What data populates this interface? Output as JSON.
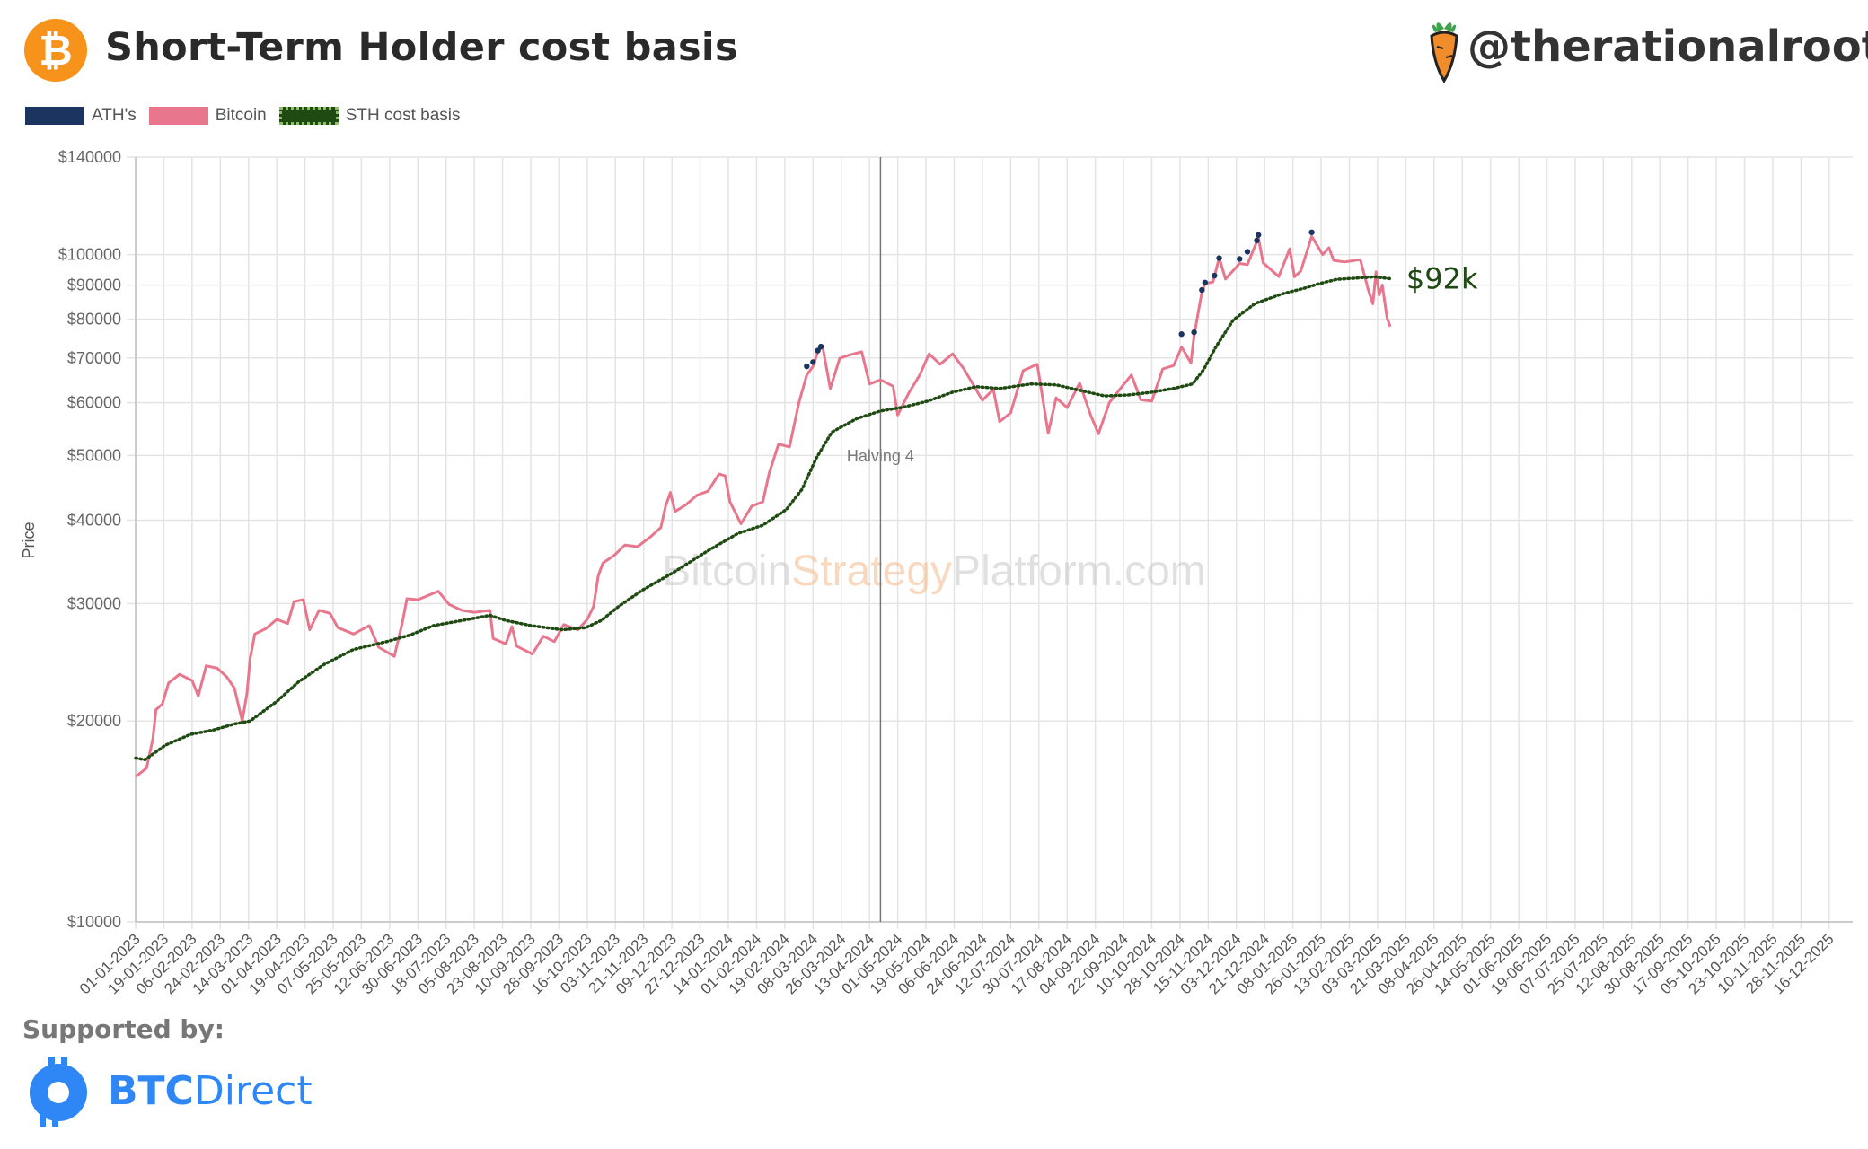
{
  "header": {
    "title": "Short-Term Holder cost basis",
    "handle": "@therationalroot",
    "bitcoin_logo_glyph": "₿",
    "bitcoin_logo_color": "#f7931a",
    "carrot_icon": "carrot-icon"
  },
  "legend": [
    {
      "label": "ATH's",
      "color": "#1b3560",
      "style": "solid"
    },
    {
      "label": "Bitcoin",
      "color": "#e8768c",
      "style": "solid"
    },
    {
      "label": "STH cost basis",
      "color": "#1f4a12",
      "style": "dotted"
    }
  ],
  "footer": {
    "supported_by": "Supported by:",
    "sponsor_bold": "BTC",
    "sponsor_rest": "Direct",
    "sponsor_color": "#2f87f6"
  },
  "chart_data": {
    "type": "line",
    "ylabel": "Price",
    "y_scale": "log",
    "ylim": [
      10000,
      140000
    ],
    "y_ticks": [
      {
        "value": 10000,
        "label": "$10000"
      },
      {
        "value": 20000,
        "label": "$20000"
      },
      {
        "value": 30000,
        "label": "$30000"
      },
      {
        "value": 40000,
        "label": "$40000"
      },
      {
        "value": 50000,
        "label": "$50000"
      },
      {
        "value": 60000,
        "label": "$60000"
      },
      {
        "value": 70000,
        "label": "$70000"
      },
      {
        "value": 80000,
        "label": "$80000"
      },
      {
        "value": 90000,
        "label": "$90000"
      },
      {
        "value": 100000,
        "label": "$100000"
      },
      {
        "value": 140000,
        "label": "$140000"
      }
    ],
    "x_range": [
      "2023-01-01",
      "2025-12-31"
    ],
    "x_ticks": [
      "01-01-2023",
      "19-01-2023",
      "06-02-2023",
      "24-02-2023",
      "14-03-2023",
      "01-04-2023",
      "19-04-2023",
      "07-05-2023",
      "25-05-2023",
      "12-06-2023",
      "30-06-2023",
      "18-07-2023",
      "05-08-2023",
      "23-08-2023",
      "10-09-2023",
      "28-09-2023",
      "16-10-2023",
      "03-11-2023",
      "21-11-2023",
      "09-12-2023",
      "27-12-2023",
      "14-01-2024",
      "01-02-2024",
      "19-02-2024",
      "08-03-2024",
      "26-03-2024",
      "13-04-2024",
      "01-05-2024",
      "19-05-2024",
      "06-06-2024",
      "24-06-2024",
      "12-07-2024",
      "30-07-2024",
      "17-08-2024",
      "04-09-2024",
      "22-09-2024",
      "10-10-2024",
      "28-10-2024",
      "15-11-2024",
      "03-12-2024",
      "21-12-2024",
      "08-01-2025",
      "26-01-2025",
      "13-02-2025",
      "03-03-2025",
      "21-03-2025",
      "08-04-2025",
      "26-04-2025",
      "14-05-2025",
      "01-06-2025",
      "19-06-2025",
      "07-07-2025",
      "25-07-2025",
      "12-08-2025",
      "30-08-2025",
      "17-09-2025",
      "05-10-2025",
      "23-10-2025",
      "10-11-2025",
      "28-11-2025",
      "16-12-2025"
    ],
    "grid": true,
    "legend_position": "top-left",
    "watermark": {
      "part1": "Bitcoin",
      "part2": "Strategy",
      "part3": "Platform.com"
    },
    "annotations": [
      {
        "type": "vline",
        "date": "2024-04-20",
        "label": "Halving 4"
      },
      {
        "type": "label",
        "text": "$92k",
        "color": "#1f4a12"
      }
    ],
    "series": [
      {
        "name": "Bitcoin",
        "color": "#e8768c",
        "points": [
          [
            "2023-01-01",
            16500
          ],
          [
            "2023-01-08",
            17000
          ],
          [
            "2023-01-12",
            18800
          ],
          [
            "2023-01-14",
            20800
          ],
          [
            "2023-01-18",
            21200
          ],
          [
            "2023-01-22",
            22800
          ],
          [
            "2023-01-29",
            23500
          ],
          [
            "2023-02-06",
            23000
          ],
          [
            "2023-02-10",
            21800
          ],
          [
            "2023-02-15",
            24200
          ],
          [
            "2023-02-22",
            24000
          ],
          [
            "2023-02-28",
            23300
          ],
          [
            "2023-03-05",
            22400
          ],
          [
            "2023-03-10",
            20000
          ],
          [
            "2023-03-13",
            22000
          ],
          [
            "2023-03-15",
            24800
          ],
          [
            "2023-03-18",
            27000
          ],
          [
            "2023-03-25",
            27500
          ],
          [
            "2023-04-01",
            28400
          ],
          [
            "2023-04-08",
            28000
          ],
          [
            "2023-04-12",
            30200
          ],
          [
            "2023-04-18",
            30400
          ],
          [
            "2023-04-22",
            27400
          ],
          [
            "2023-04-28",
            29300
          ],
          [
            "2023-05-05",
            29000
          ],
          [
            "2023-05-10",
            27600
          ],
          [
            "2023-05-20",
            27000
          ],
          [
            "2023-05-30",
            27800
          ],
          [
            "2023-06-05",
            25800
          ],
          [
            "2023-06-15",
            25000
          ],
          [
            "2023-06-20",
            28000
          ],
          [
            "2023-06-23",
            30500
          ],
          [
            "2023-06-30",
            30400
          ],
          [
            "2023-07-06",
            30800
          ],
          [
            "2023-07-13",
            31300
          ],
          [
            "2023-07-20",
            29900
          ],
          [
            "2023-07-28",
            29300
          ],
          [
            "2023-08-05",
            29100
          ],
          [
            "2023-08-15",
            29300
          ],
          [
            "2023-08-17",
            26600
          ],
          [
            "2023-08-25",
            26100
          ],
          [
            "2023-08-29",
            27700
          ],
          [
            "2023-09-01",
            25900
          ],
          [
            "2023-09-11",
            25200
          ],
          [
            "2023-09-18",
            26800
          ],
          [
            "2023-09-25",
            26300
          ],
          [
            "2023-10-01",
            27900
          ],
          [
            "2023-10-10",
            27400
          ],
          [
            "2023-10-16",
            28400
          ],
          [
            "2023-10-20",
            29700
          ],
          [
            "2023-10-23",
            33000
          ],
          [
            "2023-10-26",
            34500
          ],
          [
            "2023-11-02",
            35400
          ],
          [
            "2023-11-09",
            36700
          ],
          [
            "2023-11-17",
            36500
          ],
          [
            "2023-11-25",
            37700
          ],
          [
            "2023-12-02",
            39000
          ],
          [
            "2023-12-05",
            42000
          ],
          [
            "2023-12-08",
            44000
          ],
          [
            "2023-12-11",
            41200
          ],
          [
            "2023-12-18",
            42200
          ],
          [
            "2023-12-25",
            43600
          ],
          [
            "2024-01-01",
            44200
          ],
          [
            "2024-01-08",
            46900
          ],
          [
            "2024-01-12",
            46600
          ],
          [
            "2024-01-15",
            42600
          ],
          [
            "2024-01-22",
            39500
          ],
          [
            "2024-01-29",
            42000
          ],
          [
            "2024-02-05",
            42600
          ],
          [
            "2024-02-09",
            47000
          ],
          [
            "2024-02-15",
            52000
          ],
          [
            "2024-02-22",
            51500
          ],
          [
            "2024-02-28",
            60000
          ],
          [
            "2024-03-04",
            66000
          ],
          [
            "2024-03-08",
            68000
          ],
          [
            "2024-03-11",
            71500
          ],
          [
            "2024-03-14",
            73000
          ],
          [
            "2024-03-19",
            63000
          ],
          [
            "2024-03-25",
            69900
          ],
          [
            "2024-03-31",
            70700
          ],
          [
            "2024-04-08",
            71500
          ],
          [
            "2024-04-13",
            64000
          ],
          [
            "2024-04-20",
            64900
          ],
          [
            "2024-04-28",
            63500
          ],
          [
            "2024-05-01",
            57500
          ],
          [
            "2024-05-08",
            62000
          ],
          [
            "2024-05-15",
            66000
          ],
          [
            "2024-05-21",
            71000
          ],
          [
            "2024-05-28",
            68500
          ],
          [
            "2024-06-05",
            71000
          ],
          [
            "2024-06-12",
            67500
          ],
          [
            "2024-06-24",
            60500
          ],
          [
            "2024-07-01",
            62800
          ],
          [
            "2024-07-05",
            56200
          ],
          [
            "2024-07-12",
            57900
          ],
          [
            "2024-07-20",
            67000
          ],
          [
            "2024-07-29",
            68500
          ],
          [
            "2024-08-05",
            54000
          ],
          [
            "2024-08-10",
            61000
          ],
          [
            "2024-08-17",
            59000
          ],
          [
            "2024-08-25",
            64200
          ],
          [
            "2024-09-01",
            57500
          ],
          [
            "2024-09-06",
            53900
          ],
          [
            "2024-09-13",
            60000
          ],
          [
            "2024-09-20",
            63000
          ],
          [
            "2024-09-27",
            66000
          ],
          [
            "2024-10-03",
            60600
          ],
          [
            "2024-10-10",
            60300
          ],
          [
            "2024-10-17",
            67400
          ],
          [
            "2024-10-24",
            68200
          ],
          [
            "2024-10-29",
            72700
          ],
          [
            "2024-11-04",
            68800
          ],
          [
            "2024-11-06",
            75600
          ],
          [
            "2024-11-11",
            88000
          ],
          [
            "2024-11-13",
            90500
          ],
          [
            "2024-11-18",
            91000
          ],
          [
            "2024-11-22",
            98900
          ],
          [
            "2024-11-26",
            91900
          ],
          [
            "2024-12-05",
            97000
          ],
          [
            "2024-12-10",
            96600
          ],
          [
            "2024-12-17",
            106000
          ],
          [
            "2024-12-20",
            97200
          ],
          [
            "2024-12-30",
            92700
          ],
          [
            "2025-01-06",
            102000
          ],
          [
            "2025-01-09",
            92600
          ],
          [
            "2025-01-13",
            94500
          ],
          [
            "2025-01-20",
            106500
          ],
          [
            "2025-01-27",
            100000
          ],
          [
            "2025-01-31",
            102400
          ],
          [
            "2025-02-03",
            98000
          ],
          [
            "2025-02-10",
            97500
          ],
          [
            "2025-02-20",
            98300
          ],
          [
            "2025-02-25",
            88700
          ],
          [
            "2025-02-28",
            84400
          ],
          [
            "2025-03-02",
            94200
          ],
          [
            "2025-03-04",
            87000
          ],
          [
            "2025-03-06",
            90000
          ],
          [
            "2025-03-09",
            80500
          ],
          [
            "2025-03-11",
            78000
          ]
        ]
      },
      {
        "name": "STH cost basis",
        "color": "#1f4a12",
        "points": [
          [
            "2023-01-01",
            17600
          ],
          [
            "2023-01-07",
            17500
          ],
          [
            "2023-01-20",
            18400
          ],
          [
            "2023-02-05",
            19100
          ],
          [
            "2023-02-20",
            19400
          ],
          [
            "2023-03-05",
            19800
          ],
          [
            "2023-03-15",
            20000
          ],
          [
            "2023-04-01",
            21400
          ],
          [
            "2023-04-15",
            22900
          ],
          [
            "2023-05-01",
            24300
          ],
          [
            "2023-05-20",
            25600
          ],
          [
            "2023-06-10",
            26300
          ],
          [
            "2023-06-25",
            26900
          ],
          [
            "2023-07-10",
            27800
          ],
          [
            "2023-08-01",
            28400
          ],
          [
            "2023-08-15",
            28800
          ],
          [
            "2023-08-25",
            28300
          ],
          [
            "2023-09-10",
            27800
          ],
          [
            "2023-09-30",
            27400
          ],
          [
            "2023-10-15",
            27600
          ],
          [
            "2023-10-25",
            28300
          ],
          [
            "2023-11-05",
            29700
          ],
          [
            "2023-11-20",
            31400
          ],
          [
            "2023-12-10",
            33400
          ],
          [
            "2024-01-01",
            36000
          ],
          [
            "2024-01-20",
            38200
          ],
          [
            "2024-02-05",
            39300
          ],
          [
            "2024-02-20",
            41500
          ],
          [
            "2024-03-01",
            44500
          ],
          [
            "2024-03-10",
            49500
          ],
          [
            "2024-03-20",
            54200
          ],
          [
            "2024-04-05",
            56800
          ],
          [
            "2024-04-20",
            58300
          ],
          [
            "2024-05-05",
            59100
          ],
          [
            "2024-05-20",
            60300
          ],
          [
            "2024-06-05",
            62200
          ],
          [
            "2024-06-20",
            63400
          ],
          [
            "2024-07-05",
            63000
          ],
          [
            "2024-07-25",
            64000
          ],
          [
            "2024-08-10",
            63800
          ],
          [
            "2024-08-25",
            62600
          ],
          [
            "2024-09-10",
            61400
          ],
          [
            "2024-09-25",
            61600
          ],
          [
            "2024-10-10",
            62200
          ],
          [
            "2024-10-25",
            63100
          ],
          [
            "2024-11-05",
            64000
          ],
          [
            "2024-11-12",
            67200
          ],
          [
            "2024-11-20",
            72800
          ],
          [
            "2024-12-01",
            79800
          ],
          [
            "2024-12-15",
            84500
          ],
          [
            "2025-01-01",
            87300
          ],
          [
            "2025-01-15",
            89000
          ],
          [
            "2025-01-25",
            90500
          ],
          [
            "2025-02-05",
            91800
          ],
          [
            "2025-02-20",
            92300
          ],
          [
            "2025-03-01",
            92600
          ],
          [
            "2025-03-11",
            92000
          ]
        ]
      },
      {
        "name": "ATH's",
        "color": "#1b3560",
        "points": [
          [
            "2024-03-04",
            68000
          ],
          [
            "2024-03-08",
            69000
          ],
          [
            "2024-03-11",
            71800
          ],
          [
            "2024-03-13",
            72800
          ],
          [
            "2024-10-29",
            76000
          ],
          [
            "2024-11-06",
            76500
          ],
          [
            "2024-11-11",
            88500
          ],
          [
            "2024-11-13",
            90800
          ],
          [
            "2024-11-19",
            93000
          ],
          [
            "2024-11-22",
            98800
          ],
          [
            "2024-12-05",
            98500
          ],
          [
            "2024-12-10",
            101000
          ],
          [
            "2024-12-16",
            105000
          ],
          [
            "2024-12-17",
            107000
          ],
          [
            "2025-01-20",
            108000
          ]
        ]
      }
    ]
  }
}
